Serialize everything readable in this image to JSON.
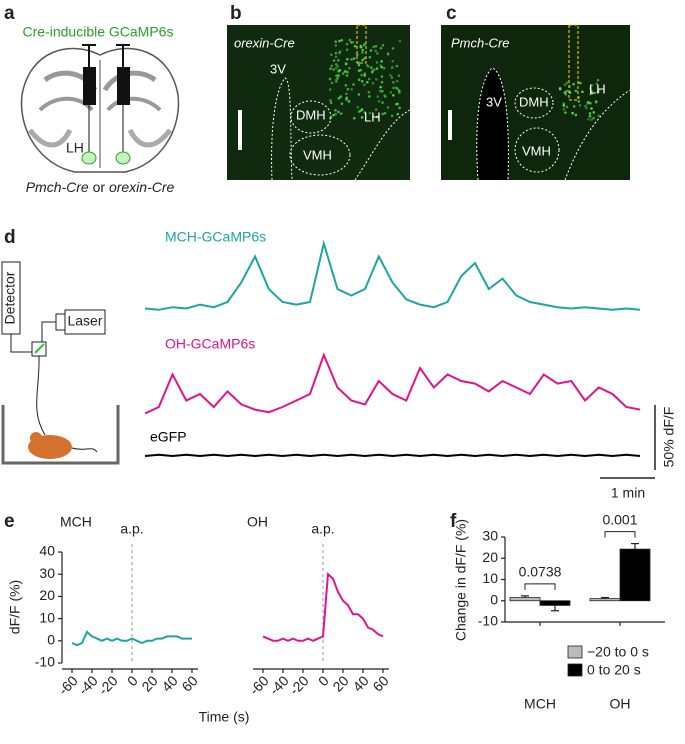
{
  "panel_labels": [
    "a",
    "b",
    "c",
    "d",
    "e",
    "f"
  ],
  "panel_a": {
    "title": "Cre-inducible GCaMP6s",
    "region": "LH",
    "caption": [
      "Pmch-Cre",
      "or",
      "orexin-Cre"
    ]
  },
  "panel_b": {
    "title": "orexin-Cre",
    "regions": [
      "3V",
      "DMH",
      "LH",
      "VMH"
    ]
  },
  "panel_c": {
    "title": "Pmch-Cre",
    "regions": [
      "3V",
      "DMH",
      "LH",
      "VMH"
    ]
  },
  "panel_d": {
    "detector": "Detector",
    "laser": "Laser"
  },
  "chart_data": [
    {
      "type": "trace",
      "x": [
        0,
        0.25,
        0.5,
        0.75,
        1,
        1.25,
        1.5,
        1.75,
        2,
        2.25,
        2.5,
        2.75,
        3,
        3.25,
        3.5,
        3.75,
        4,
        4.25,
        4.5,
        4.75,
        5,
        5.25,
        5.5,
        5.75,
        6,
        6.25,
        6.5,
        6.75,
        7,
        7.25,
        7.5,
        7.75,
        8,
        8.25,
        8.5,
        8.75,
        9
      ],
      "series": [
        {
          "name": "MCH-GCaMP6s",
          "color": "#1ca6a0",
          "values": [
            5,
            4,
            6,
            5,
            8,
            6,
            10,
            25,
            45,
            20,
            10,
            8,
            10,
            55,
            20,
            15,
            20,
            45,
            25,
            12,
            8,
            6,
            10,
            30,
            40,
            20,
            28,
            15,
            10,
            8,
            6,
            5,
            6,
            5,
            4,
            5,
            4
          ]
        },
        {
          "name": "OH-GCaMP6s",
          "color": "#e0148c",
          "values": [
            5,
            10,
            35,
            15,
            20,
            10,
            22,
            12,
            8,
            6,
            10,
            15,
            20,
            50,
            25,
            15,
            12,
            30,
            20,
            15,
            40,
            25,
            35,
            30,
            28,
            22,
            30,
            25,
            20,
            35,
            28,
            30,
            15,
            25,
            20,
            10,
            8
          ]
        },
        {
          "name": "eGFP",
          "color": "#000000",
          "values": [
            0,
            1,
            0,
            1,
            0,
            1,
            0,
            1,
            0,
            1,
            0,
            1,
            0,
            1,
            0,
            1,
            0,
            1,
            0,
            1,
            0,
            1,
            0,
            1,
            0,
            1,
            0,
            1,
            0,
            1,
            0,
            1,
            0,
            1,
            0,
            1,
            0
          ]
        }
      ],
      "scalebar_y": {
        "value": 50,
        "label": "50% dF/F"
      },
      "scalebar_x": {
        "value": 1,
        "label": "1 min"
      }
    },
    {
      "type": "line",
      "title": "MCH",
      "ylabel": "dF/F (%)",
      "xlabel": "Time (s)",
      "color": "#1ca6a0",
      "x": [
        -60,
        -55,
        -50,
        -45,
        -40,
        -35,
        -30,
        -25,
        -20,
        -15,
        -10,
        -5,
        0,
        5,
        10,
        15,
        20,
        25,
        30,
        35,
        40,
        45,
        50,
        55,
        60
      ],
      "values": [
        -1,
        -2,
        -1,
        4,
        2,
        1,
        0,
        1,
        0,
        1,
        0,
        0,
        1,
        0,
        -1,
        0,
        0,
        1,
        1,
        2,
        2,
        2,
        1,
        1,
        1
      ],
      "xlim": [
        -60,
        60
      ],
      "ylim": [
        -10,
        40
      ],
      "xticks": [
        -60,
        -40,
        -20,
        0,
        20,
        40,
        60
      ],
      "yticks": [
        -10,
        0,
        10,
        20,
        30,
        40
      ],
      "annotation": {
        "x": 0,
        "label": "a.p."
      }
    },
    {
      "type": "line",
      "title": "OH",
      "color": "#e0148c",
      "x": [
        -60,
        -55,
        -50,
        -45,
        -40,
        -35,
        -30,
        -25,
        -20,
        -15,
        -10,
        -5,
        0,
        5,
        10,
        15,
        20,
        25,
        30,
        35,
        40,
        45,
        50,
        55,
        60
      ],
      "values": [
        2,
        1,
        0,
        0,
        1,
        0,
        1,
        0,
        0,
        1,
        0,
        1,
        2,
        30,
        28,
        22,
        18,
        16,
        12,
        12,
        10,
        6,
        5,
        3,
        2
      ],
      "xlim": [
        -60,
        60
      ],
      "ylim": [
        -10,
        40
      ],
      "xticks": [
        -60,
        -40,
        -20,
        0,
        20,
        40,
        60
      ],
      "annotation": {
        "x": 0,
        "label": "a.p."
      }
    },
    {
      "type": "bar",
      "ylabel": "Change in dF/F (%)",
      "categories": [
        "MCH",
        "OH"
      ],
      "series": [
        {
          "name": "−20 to 0 s",
          "color": "#bbbbbb",
          "values": [
            1.5,
            1.0
          ],
          "errors": [
            0.8,
            0.5
          ]
        },
        {
          "name": "0 to 20 s",
          "color": "#000000",
          "values": [
            -2.2,
            24.3
          ],
          "errors": [
            2.5,
            2.6
          ]
        }
      ],
      "ylim": [
        -10,
        30
      ],
      "yticks": [
        -10,
        0,
        10,
        20,
        30
      ],
      "annotations": [
        {
          "category": 0,
          "label": "0.0738"
        },
        {
          "category": 1,
          "label": "0.001"
        }
      ]
    }
  ]
}
